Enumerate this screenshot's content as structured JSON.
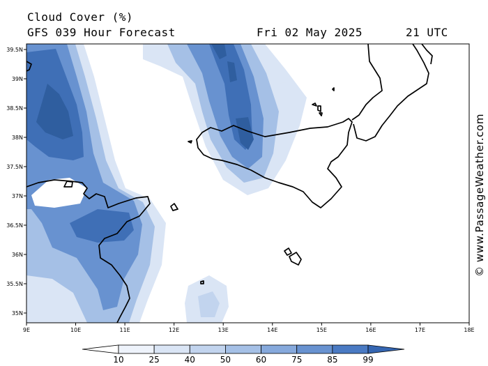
{
  "header": {
    "title": "Cloud Cover (%)",
    "subtitle": "GFS 039 Hour Forecast",
    "date": "Fri 02 May 2025",
    "time": "21 UTC"
  },
  "credit": "© www.PassageWeather.com",
  "axes": {
    "lat_labels": [
      "39.5N",
      "39N",
      "38.5N",
      "38N",
      "37.5N",
      "37N",
      "36.5N",
      "36N",
      "35.5N",
      "35N"
    ],
    "lon_labels": [
      "9E",
      "10E",
      "11E",
      "12E",
      "13E",
      "14E",
      "15E",
      "16E",
      "17E",
      "18E"
    ]
  },
  "colorbar": {
    "labels": [
      "10",
      "25",
      "40",
      "50",
      "60",
      "75",
      "85",
      "99"
    ],
    "colors": [
      "#ffffff",
      "#eef3fb",
      "#dae5f5",
      "#c2d4ee",
      "#a5c0e6",
      "#86a9dc",
      "#6892d0",
      "#4a7ac3",
      "#3566b2"
    ]
  },
  "legend_levels": {
    "l1": "#dae5f5",
    "l2": "#a5c0e6",
    "l3": "#6892d0",
    "l4": "#3f6fb6",
    "l5": "#2f5e9f"
  }
}
